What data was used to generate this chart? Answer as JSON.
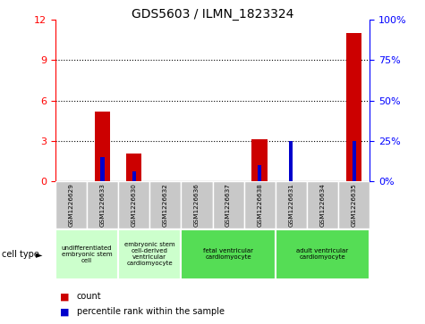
{
  "title": "GDS5603 / ILMN_1823324",
  "samples": [
    "GSM1226629",
    "GSM1226633",
    "GSM1226630",
    "GSM1226632",
    "GSM1226636",
    "GSM1226637",
    "GSM1226638",
    "GSM1226631",
    "GSM1226634",
    "GSM1226635"
  ],
  "count_values": [
    0,
    5.2,
    2.1,
    0,
    0,
    0,
    3.1,
    0,
    0,
    11.0
  ],
  "percentile_values": [
    0,
    15,
    6,
    0,
    0,
    0,
    10,
    25,
    0,
    25
  ],
  "ylim_left": [
    0,
    12
  ],
  "ylim_right": [
    0,
    100
  ],
  "yticks_left": [
    0,
    3,
    6,
    9,
    12
  ],
  "yticks_right": [
    0,
    25,
    50,
    75,
    100
  ],
  "bar_color_count": "#cc0000",
  "bar_color_pct": "#0000cc",
  "cell_type_groups": [
    {
      "label": "undifferentiated\nembryonic stem\ncell",
      "start": 0,
      "end": 2,
      "color": "#ccffcc"
    },
    {
      "label": "embryonic stem\ncell-derived\nventricular\ncardiomyocyte",
      "start": 2,
      "end": 4,
      "color": "#ccffcc"
    },
    {
      "label": "fetal ventricular\ncardiomyocyte",
      "start": 4,
      "end": 7,
      "color": "#55dd55"
    },
    {
      "label": "adult ventricular\ncardiomyocyte",
      "start": 7,
      "end": 10,
      "color": "#55dd55"
    }
  ],
  "tick_bg_color": "#c8c8c8",
  "bar_width": 0.5,
  "pct_bar_width": 0.12
}
